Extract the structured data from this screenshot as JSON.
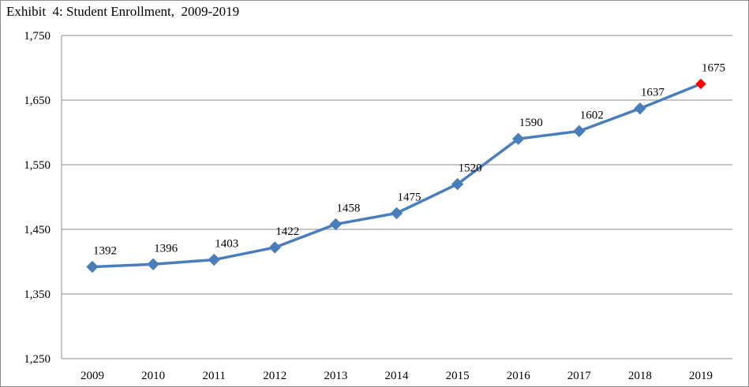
{
  "chart_data": {
    "type": "line",
    "title": "Exhibit  4: Student Enrollment,  2009-2019",
    "xlabel": "",
    "ylabel": "",
    "categories": [
      "2009",
      "2010",
      "2011",
      "2012",
      "2013",
      "2014",
      "2015",
      "2016",
      "2017",
      "2018",
      "2019"
    ],
    "series": [
      {
        "values": [
          1392,
          1396,
          1403,
          1422,
          1458,
          1475,
          1520,
          1590,
          1602,
          1637,
          1675
        ]
      }
    ],
    "data_labels": [
      "1392",
      "1396",
      "1403",
      "1422",
      "1458",
      "1475",
      "1520",
      "1590",
      "1602",
      "1637",
      "1675"
    ],
    "ylim": [
      1250,
      1750
    ],
    "yticks": [
      1250,
      1350,
      1450,
      1550,
      1650,
      1750
    ],
    "ytick_labels": [
      "1,250",
      "1,350",
      "1,450",
      "1,550",
      "1,650",
      "1,750"
    ],
    "grid": true,
    "legend": "none",
    "colors": {
      "line": "#4a7ebb",
      "marker": "#4a7ebb",
      "highlight_marker": "#ff0000",
      "grid": "#8c8c8c"
    },
    "highlight_index": 10
  }
}
